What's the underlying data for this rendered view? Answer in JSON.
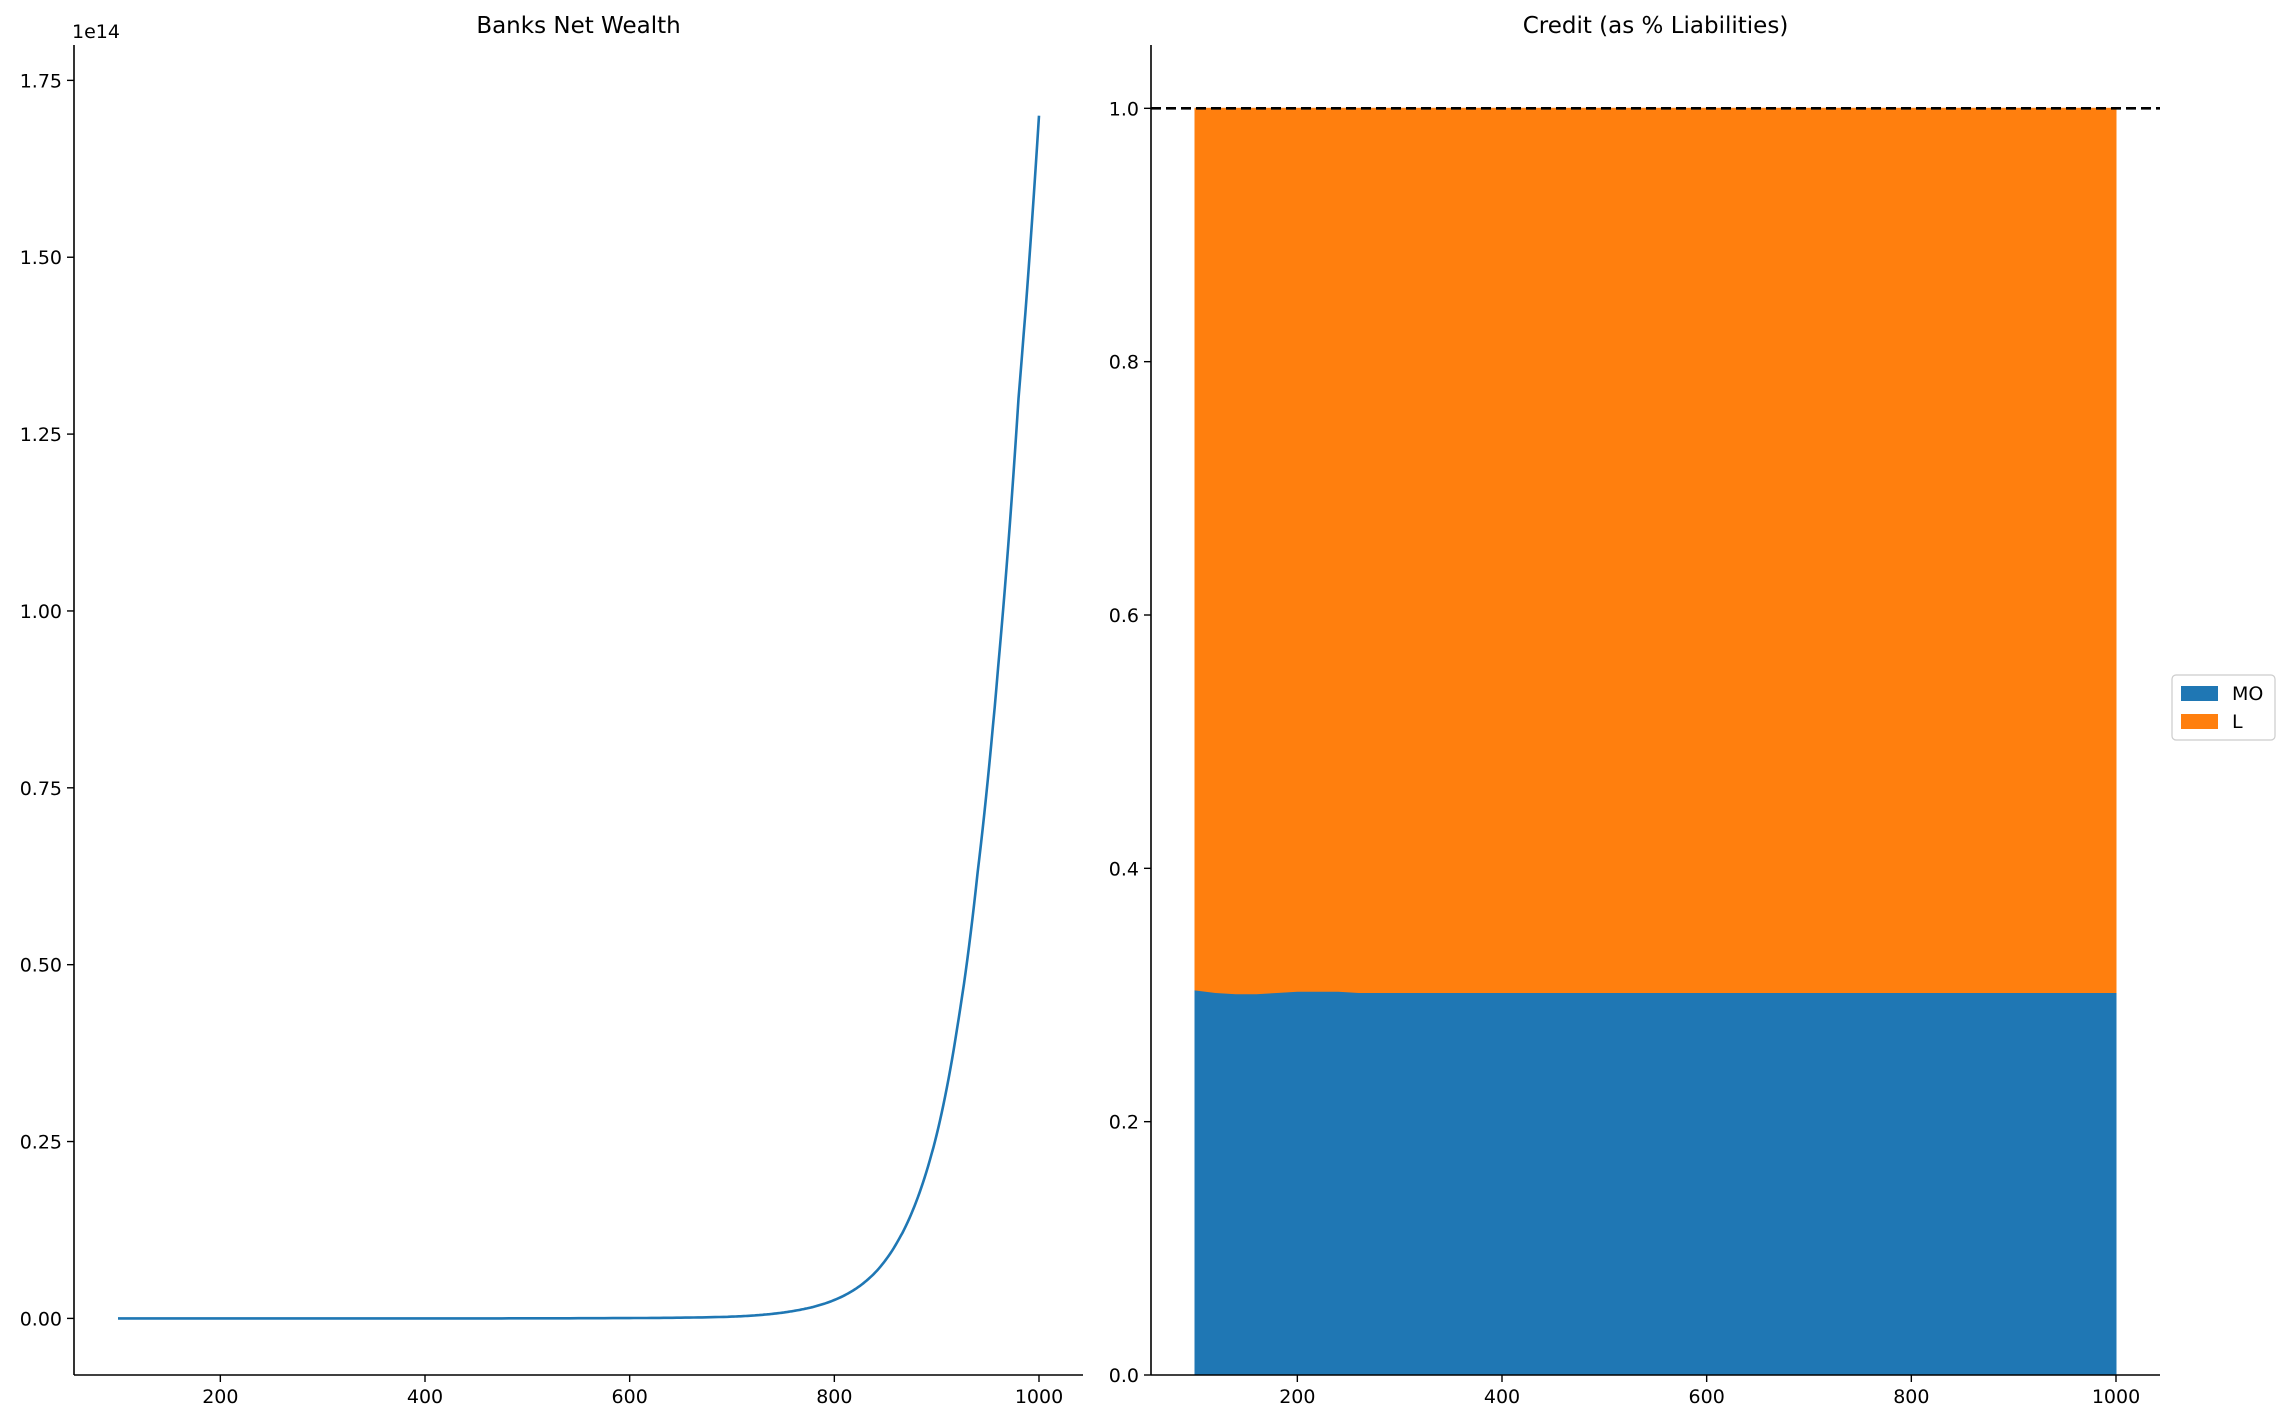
{
  "chart_data": [
    {
      "type": "line",
      "title": "Banks Net Wealth",
      "xlabel": "",
      "ylabel": "",
      "y_offset_label": "1e14",
      "xlim": [
        57,
        1043
      ],
      "ylim": [
        -0.08,
        1.8
      ],
      "y_scale_factor": 100000000000000.0,
      "xticks": [
        200,
        400,
        600,
        800,
        1000
      ],
      "yticks": [
        0.0,
        0.25,
        0.5,
        0.75,
        1.0,
        1.25,
        1.5,
        1.75
      ],
      "ytick_labels": [
        "0.00",
        "0.25",
        "0.50",
        "0.75",
        "1.00",
        "1.25",
        "1.50",
        "1.75"
      ],
      "grid": false,
      "series": [
        {
          "color": "#1f77b4",
          "x": [
            100,
            200,
            300,
            400,
            500,
            600,
            650,
            700,
            720,
            740,
            760,
            780,
            800,
            820,
            840,
            860,
            880,
            900,
            920,
            940,
            960,
            980,
            1000
          ],
          "y": [
            0.0,
            0.0,
            0.0,
            0.0,
            0.0001,
            0.0005,
            0.001,
            0.0025,
            0.004,
            0.0065,
            0.0105,
            0.0165,
            0.026,
            0.041,
            0.065,
            0.104,
            0.165,
            0.26,
            0.41,
            0.63,
            0.92,
            1.3,
            1.7
          ]
        }
      ]
    },
    {
      "type": "area",
      "stacked": true,
      "title": "Credit (as % Liabilities)",
      "xlabel": "",
      "ylabel": "",
      "xlim": [
        57,
        1043
      ],
      "ylim": [
        0,
        1.05
      ],
      "xticks": [
        200,
        400,
        600,
        800,
        1000
      ],
      "yticks": [
        0.0,
        0.2,
        0.4,
        0.6,
        0.8,
        1.0
      ],
      "ytick_labels": [
        "0.0",
        "0.2",
        "0.4",
        "0.6",
        "0.8",
        "1.0"
      ],
      "grid": false,
      "reference_line": {
        "y": 1.0,
        "style": "dashed",
        "color": "#000000"
      },
      "legend_position": "center-right-outside",
      "x": [
        100,
        120,
        140,
        160,
        180,
        200,
        220,
        240,
        260,
        280,
        300,
        350,
        400,
        500,
        600,
        700,
        800,
        900,
        1000
      ],
      "series": [
        {
          "name": "MO",
          "color": "#1f77b4",
          "values": [
            0.304,
            0.302,
            0.301,
            0.301,
            0.302,
            0.303,
            0.303,
            0.303,
            0.302,
            0.302,
            0.302,
            0.302,
            0.302,
            0.302,
            0.302,
            0.302,
            0.302,
            0.302,
            0.302
          ]
        },
        {
          "name": "L",
          "color": "#ff7f0e",
          "values": [
            0.696,
            0.698,
            0.699,
            0.699,
            0.698,
            0.697,
            0.697,
            0.697,
            0.698,
            0.698,
            0.698,
            0.698,
            0.698,
            0.698,
            0.698,
            0.698,
            0.698,
            0.698,
            0.698
          ]
        }
      ]
    }
  ]
}
